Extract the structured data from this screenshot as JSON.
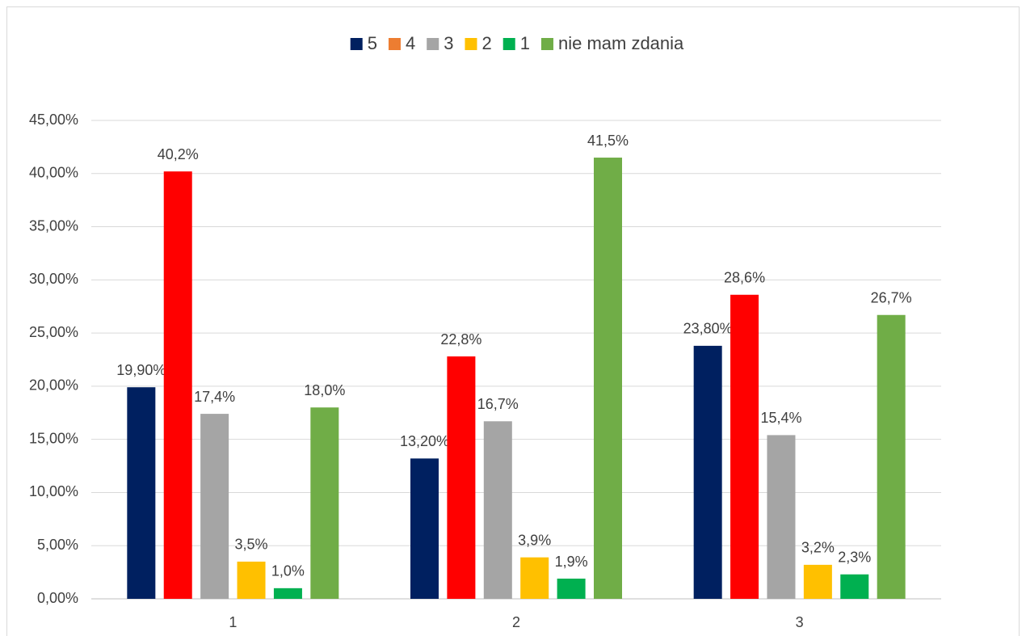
{
  "chart_data": {
    "type": "bar",
    "categories": [
      "1",
      "2",
      "3"
    ],
    "series": [
      {
        "name": "5",
        "color": "#002060",
        "values": [
          19.9,
          13.2,
          23.8
        ],
        "value_labels": [
          "19,90%",
          "13,20%",
          "23,80%"
        ]
      },
      {
        "name": "4",
        "color": "#ff0000",
        "legend_color": "#ed7d31",
        "values": [
          40.2,
          22.8,
          28.6
        ],
        "value_labels": [
          "40,2%",
          "22,8%",
          "28,6%"
        ]
      },
      {
        "name": "3",
        "color": "#a5a5a5",
        "values": [
          17.4,
          16.7,
          15.4
        ],
        "value_labels": [
          "17,4%",
          "16,7%",
          "15,4%"
        ]
      },
      {
        "name": "2",
        "color": "#ffc000",
        "values": [
          3.5,
          3.9,
          3.2
        ],
        "value_labels": [
          "3,5%",
          "3,9%",
          "3,2%"
        ]
      },
      {
        "name": "1",
        "color": "#00b050",
        "values": [
          1.0,
          1.9,
          2.3
        ],
        "value_labels": [
          "1,0%",
          "1,9%",
          "2,3%"
        ]
      },
      {
        "name": "nie mam zdania",
        "color": "#70ad47",
        "values": [
          18.0,
          41.5,
          26.7
        ],
        "value_labels": [
          "18,0%",
          "41,5%",
          "26,7%"
        ]
      }
    ],
    "ylim": [
      0,
      45
    ],
    "yticks": [
      {
        "value": 0,
        "label": "0,00%"
      },
      {
        "value": 5,
        "label": "5,00%"
      },
      {
        "value": 10,
        "label": "10,00%"
      },
      {
        "value": 15,
        "label": "15,00%"
      },
      {
        "value": 20,
        "label": "20,00%"
      },
      {
        "value": 25,
        "label": "25,00%"
      },
      {
        "value": 30,
        "label": "30,00%"
      },
      {
        "value": 35,
        "label": "35,00%"
      },
      {
        "value": 40,
        "label": "40,00%"
      },
      {
        "value": 45,
        "label": "45,00%"
      }
    ],
    "grid": true,
    "legend": "top"
  }
}
